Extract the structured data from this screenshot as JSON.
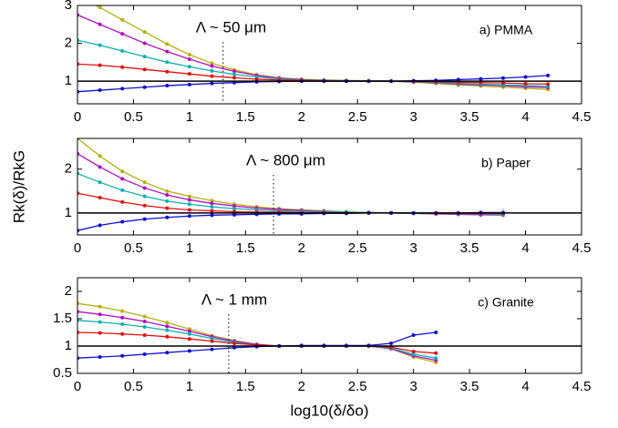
{
  "chart_data": [
    {
      "type": "line",
      "label": "a) PMMA",
      "annotation": "Λ ~ 50 μm",
      "marker_x": 1.3,
      "reference_y": 1,
      "xlim": [
        0,
        4.5
      ],
      "xticks": [
        0,
        0.5,
        1,
        1.5,
        2,
        2.5,
        3,
        3.5,
        4,
        4.5
      ],
      "ylim": [
        0.4,
        3
      ],
      "yticks": [
        1,
        2,
        3
      ],
      "x": [
        0,
        0.2,
        0.4,
        0.6,
        0.8,
        1.0,
        1.2,
        1.4,
        1.6,
        1.8,
        2.0,
        2.2,
        2.4,
        2.6,
        2.8,
        3.0,
        3.2,
        3.4,
        3.6,
        3.8,
        4.0,
        4.2
      ],
      "series": [
        {
          "color": "#b8b010",
          "values": [
            3.25,
            2.95,
            2.62,
            2.3,
            1.98,
            1.7,
            1.47,
            1.3,
            1.17,
            1.09,
            1.05,
            1.03,
            1.02,
            1.01,
            1.0,
            0.97,
            0.94,
            0.9,
            0.87,
            0.84,
            0.81,
            0.78
          ]
        },
        {
          "color": "#b010c0",
          "values": [
            2.75,
            2.5,
            2.25,
            2.0,
            1.78,
            1.58,
            1.4,
            1.26,
            1.15,
            1.08,
            1.04,
            1.02,
            1.01,
            1.0,
            1.0,
            0.98,
            0.95,
            0.92,
            0.9,
            0.88,
            0.85,
            0.83
          ]
        },
        {
          "color": "#10b0b0",
          "values": [
            2.08,
            1.95,
            1.8,
            1.65,
            1.5,
            1.38,
            1.27,
            1.18,
            1.11,
            1.06,
            1.03,
            1.02,
            1.01,
            1.0,
            1.0,
            0.98,
            0.96,
            0.94,
            0.92,
            0.9,
            0.88,
            0.86
          ]
        },
        {
          "color": "#e01010",
          "values": [
            1.45,
            1.42,
            1.37,
            1.31,
            1.25,
            1.19,
            1.13,
            1.09,
            1.05,
            1.03,
            1.02,
            1.01,
            1.0,
            1.0,
            1.0,
            0.99,
            0.98,
            0.97,
            0.96,
            0.95,
            0.93,
            0.92
          ]
        },
        {
          "color": "#1010d0",
          "values": [
            0.72,
            0.76,
            0.8,
            0.84,
            0.88,
            0.91,
            0.94,
            0.96,
            0.98,
            0.99,
            1.0,
            1.0,
            1.0,
            1.0,
            1.0,
            1.01,
            1.02,
            1.04,
            1.06,
            1.08,
            1.11,
            1.15
          ]
        }
      ]
    },
    {
      "type": "line",
      "label": "b) Paper",
      "annotation": "Λ ~ 800 μm",
      "marker_x": 1.75,
      "reference_y": 1,
      "ylabel": "Rk(δ)/RkG",
      "xlim": [
        0,
        4.5
      ],
      "xticks": [
        0,
        0.5,
        1,
        1.5,
        2,
        2.5,
        3,
        3.5,
        4,
        4.5
      ],
      "ylim": [
        0.5,
        2.7
      ],
      "yticks": [
        1,
        2
      ],
      "x": [
        0,
        0.2,
        0.4,
        0.6,
        0.8,
        1.0,
        1.2,
        1.4,
        1.6,
        1.8,
        2.0,
        2.2,
        2.4,
        2.6,
        2.8,
        3.0,
        3.2,
        3.4,
        3.6,
        3.8
      ],
      "series": [
        {
          "color": "#b8b010",
          "values": [
            2.7,
            2.3,
            1.95,
            1.7,
            1.5,
            1.38,
            1.28,
            1.2,
            1.14,
            1.1,
            1.07,
            1.05,
            1.03,
            1.01,
            1.0,
            0.99,
            0.98,
            0.97,
            0.96,
            0.95
          ]
        },
        {
          "color": "#b010c0",
          "values": [
            2.35,
            2.05,
            1.78,
            1.57,
            1.41,
            1.3,
            1.22,
            1.16,
            1.11,
            1.08,
            1.06,
            1.04,
            1.02,
            1.01,
            1.0,
            0.99,
            0.98,
            0.97,
            0.96,
            0.96
          ]
        },
        {
          "color": "#10b0b0",
          "values": [
            1.9,
            1.7,
            1.52,
            1.38,
            1.27,
            1.2,
            1.14,
            1.1,
            1.07,
            1.05,
            1.04,
            1.03,
            1.02,
            1.01,
            1.0,
            0.99,
            0.99,
            0.98,
            0.98,
            0.97
          ]
        },
        {
          "color": "#e01010",
          "values": [
            1.45,
            1.35,
            1.25,
            1.17,
            1.11,
            1.07,
            1.05,
            1.03,
            1.02,
            1.02,
            1.01,
            1.01,
            1.0,
            1.0,
            1.0,
            1.0,
            0.99,
            0.99,
            0.99,
            0.99
          ]
        },
        {
          "color": "#1010d0",
          "values": [
            0.6,
            0.72,
            0.8,
            0.86,
            0.9,
            0.93,
            0.95,
            0.96,
            0.97,
            0.98,
            0.98,
            0.99,
            0.99,
            1.0,
            1.0,
            1.0,
            1.0,
            1.0,
            1.01,
            1.01
          ]
        }
      ]
    },
    {
      "type": "line",
      "label": "c) Granite",
      "annotation": "Λ ~ 1 mm",
      "marker_x": 1.35,
      "reference_y": 1,
      "xlabel": "log10(δ/δo)",
      "xlim": [
        0,
        4.5
      ],
      "xticks": [
        0,
        0.5,
        1,
        1.5,
        2,
        2.5,
        3,
        3.5,
        4,
        4.5
      ],
      "ylim": [
        0.5,
        2.25
      ],
      "yticks": [
        0.5,
        1,
        1.5,
        2
      ],
      "x": [
        0,
        0.2,
        0.4,
        0.6,
        0.8,
        1.0,
        1.2,
        1.4,
        1.6,
        1.8,
        2.0,
        2.2,
        2.4,
        2.6,
        2.8,
        3.0,
        3.2
      ],
      "series": [
        {
          "color": "#b8b010",
          "values": [
            1.78,
            1.72,
            1.64,
            1.54,
            1.43,
            1.31,
            1.19,
            1.1,
            1.03,
            1.0,
            1.0,
            1.0,
            1.0,
            1.0,
            0.95,
            0.8,
            0.7
          ]
        },
        {
          "color": "#b010c0",
          "values": [
            1.63,
            1.58,
            1.52,
            1.45,
            1.36,
            1.27,
            1.17,
            1.09,
            1.03,
            1.0,
            1.0,
            1.0,
            1.0,
            1.0,
            0.95,
            0.82,
            0.74
          ]
        },
        {
          "color": "#10b0b0",
          "values": [
            1.47,
            1.44,
            1.4,
            1.35,
            1.29,
            1.22,
            1.14,
            1.07,
            1.02,
            1.0,
            1.0,
            1.0,
            1.0,
            1.0,
            0.96,
            0.85,
            0.78
          ]
        },
        {
          "color": "#e01010",
          "values": [
            1.25,
            1.24,
            1.22,
            1.2,
            1.17,
            1.13,
            1.09,
            1.05,
            1.02,
            1.0,
            1.0,
            1.0,
            1.0,
            1.0,
            0.98,
            0.9,
            0.87
          ]
        },
        {
          "color": "#1010d0",
          "values": [
            0.78,
            0.8,
            0.82,
            0.85,
            0.88,
            0.91,
            0.94,
            0.97,
            0.99,
            1.0,
            1.01,
            1.01,
            1.01,
            1.01,
            1.05,
            1.2,
            1.25
          ]
        }
      ]
    }
  ]
}
